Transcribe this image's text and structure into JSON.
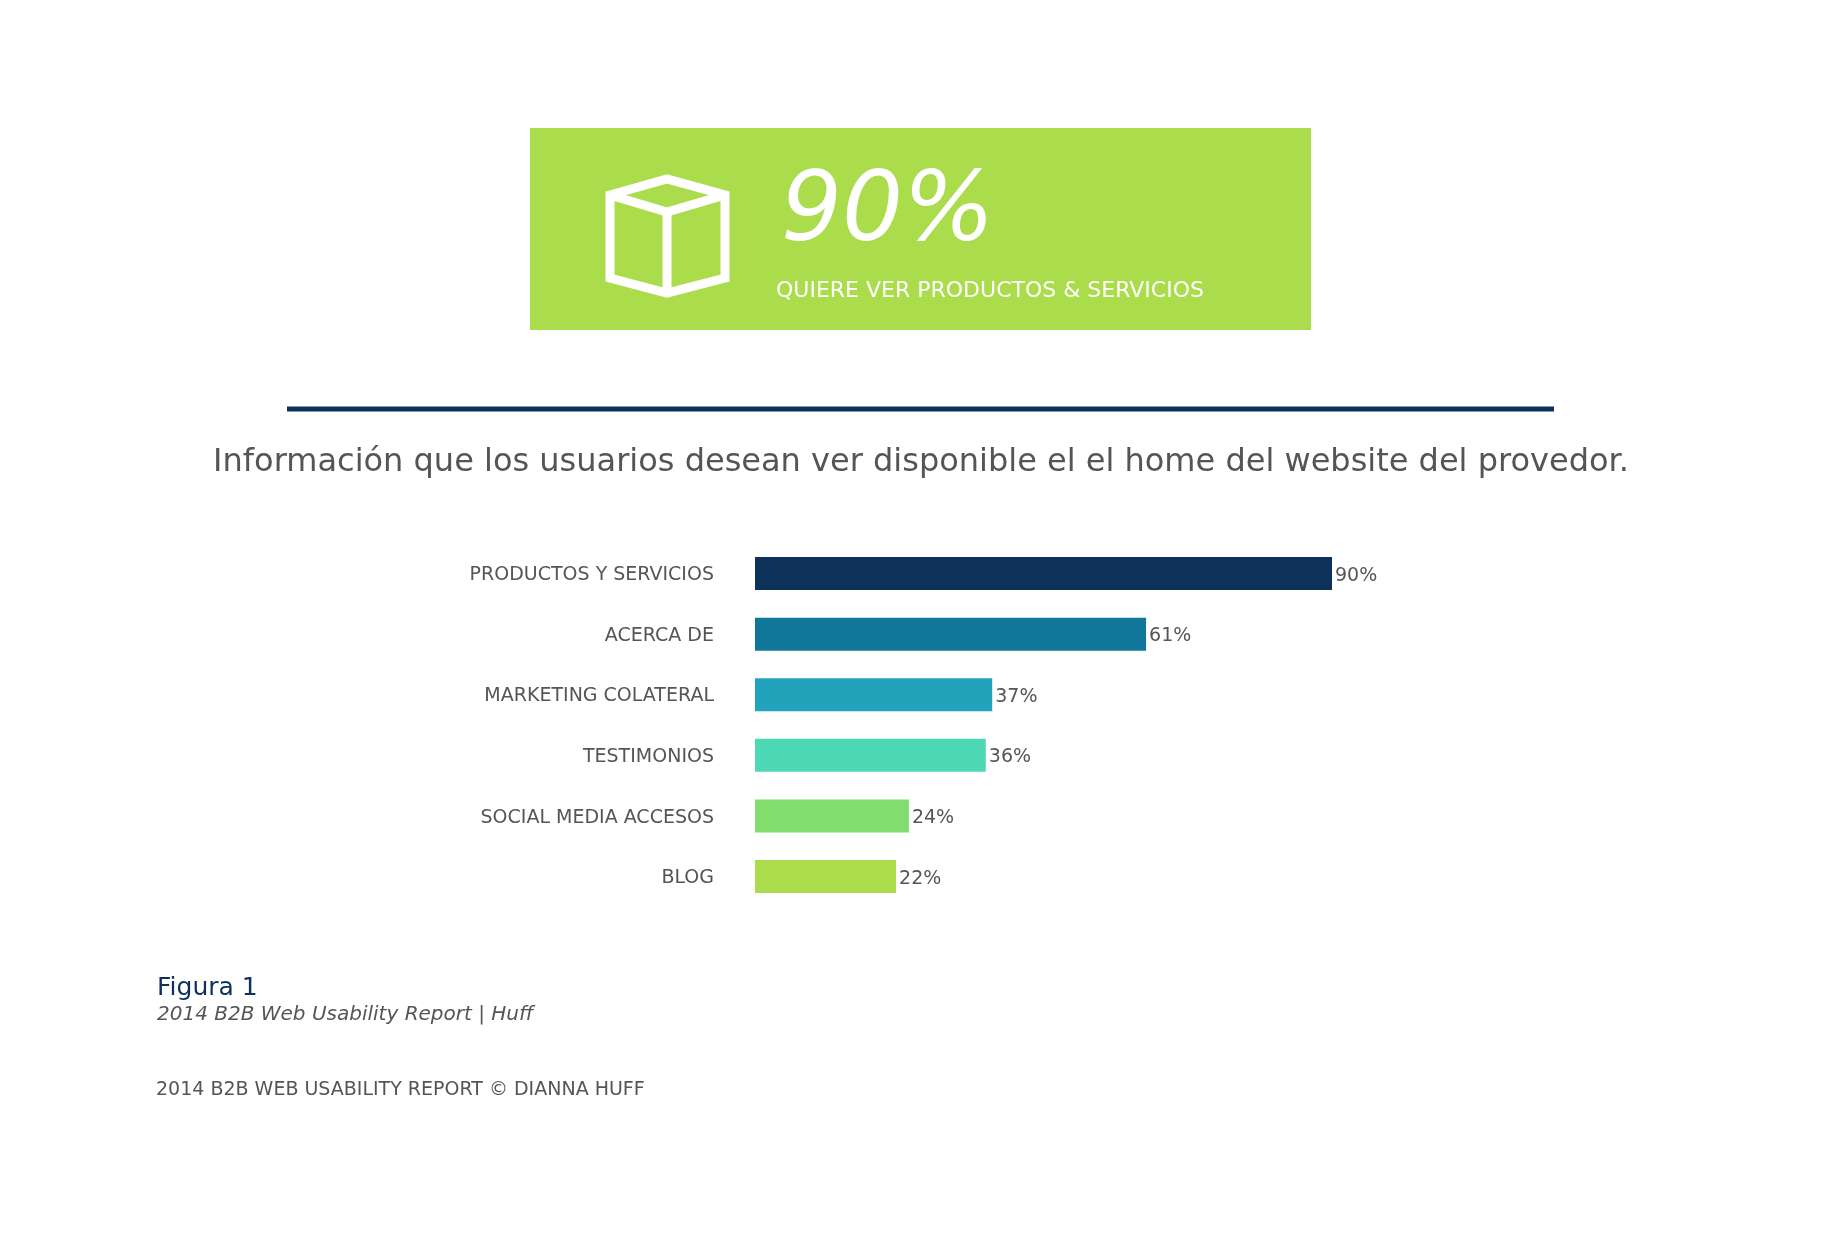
{
  "chart_data": {
    "type": "bar",
    "orientation": "horizontal",
    "title": "Información que los usuarios desean ver disponible el el home del website del provedor.",
    "categories": [
      "PRODUCTOS Y SERVICIOS",
      "ACERCA DE",
      "MARKETING COLATERAL",
      "TESTIMONIOS",
      "SOCIAL MEDIA ACCESOS",
      "BLOG"
    ],
    "values": [
      90,
      61,
      37,
      36,
      24,
      22
    ],
    "colors": [
      "#0d3159",
      "#10779a",
      "#20a3bb",
      "#4dd8b6",
      "#82dd6e",
      "#aadc4b"
    ],
    "value_labels": [
      "90%",
      "61%",
      "37%",
      "36%",
      "24%",
      "22%"
    ],
    "tick_labels": "y",
    "annotations": [
      "90%",
      "QUIERE VER PRODUCTOS & SERVICIOS",
      "Figura 1",
      "2014 B2B Web Usability Report | Huff",
      "2014 B2B WEB USABILITY REPORT © DIANNA HUFF"
    ]
  }
}
